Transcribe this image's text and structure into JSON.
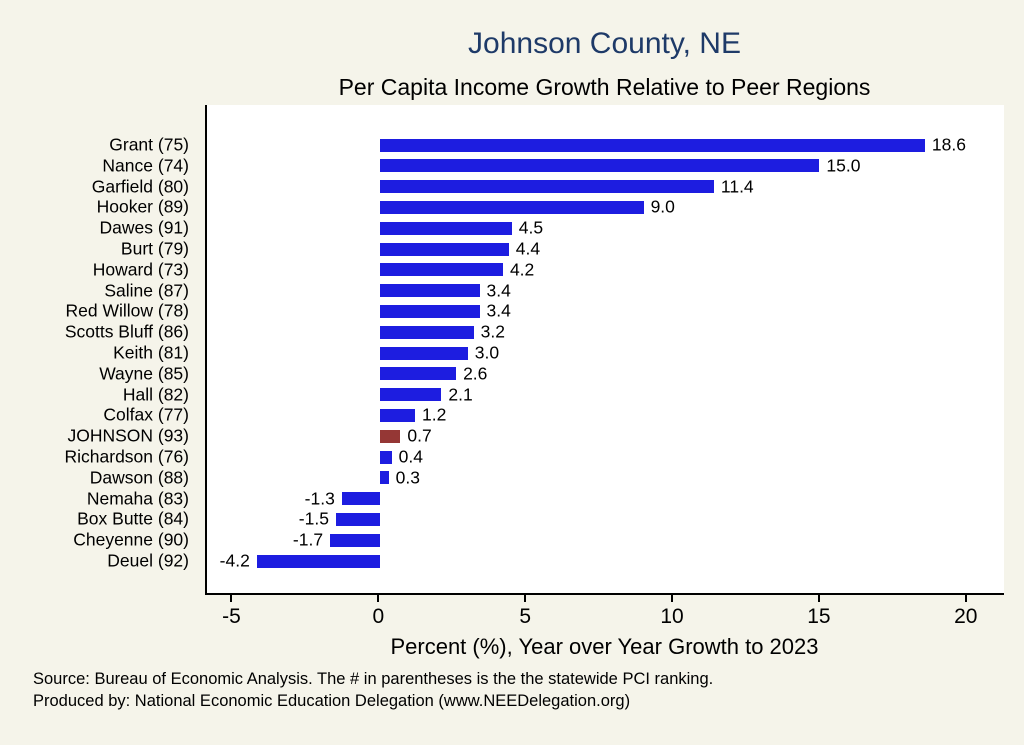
{
  "chart_data": {
    "type": "bar",
    "orientation": "horizontal",
    "title": "Johnson County, NE",
    "subtitle": "Per Capita Income Growth Relative to Peer Regions",
    "categories": [
      "Grant (75)",
      "Nance (74)",
      "Garfield (80)",
      "Hooker (89)",
      "Dawes (91)",
      "Burt (79)",
      "Howard (73)",
      "Saline (87)",
      "Red Willow (78)",
      "Scotts Bluff (86)",
      "Keith (81)",
      "Wayne (85)",
      "Hall (82)",
      "Colfax (77)",
      "JOHNSON (93)",
      "Richardson (76)",
      "Dawson (88)",
      "Nemaha (83)",
      "Box Butte (84)",
      "Cheyenne (90)",
      "Deuel (92)"
    ],
    "values": [
      18.6,
      15.0,
      11.4,
      9.0,
      4.5,
      4.4,
      4.2,
      3.4,
      3.4,
      3.2,
      3.0,
      2.6,
      2.1,
      1.2,
      0.7,
      0.4,
      0.3,
      -1.3,
      -1.5,
      -1.7,
      -4.2
    ],
    "highlight_category": "JOHNSON (93)",
    "xlabel": "Percent (%), Year over Year Growth to 2023",
    "xticks": [
      -5,
      0,
      5,
      10,
      15,
      20
    ],
    "xlim": [
      -5.9,
      21.3
    ],
    "grid": false,
    "legend": "none",
    "colors": {
      "bar": "#1d1de0",
      "highlight": "#953735",
      "title": "#1e3a68",
      "background": "#f5f4ea",
      "plot_background": "#ffffff"
    },
    "notes": [
      "Source: Bureau of Economic Analysis. The # in parentheses is the the statewide PCI ranking.",
      "Produced by: National Economic Education Delegation (www.NEEDelegation.org)"
    ]
  }
}
